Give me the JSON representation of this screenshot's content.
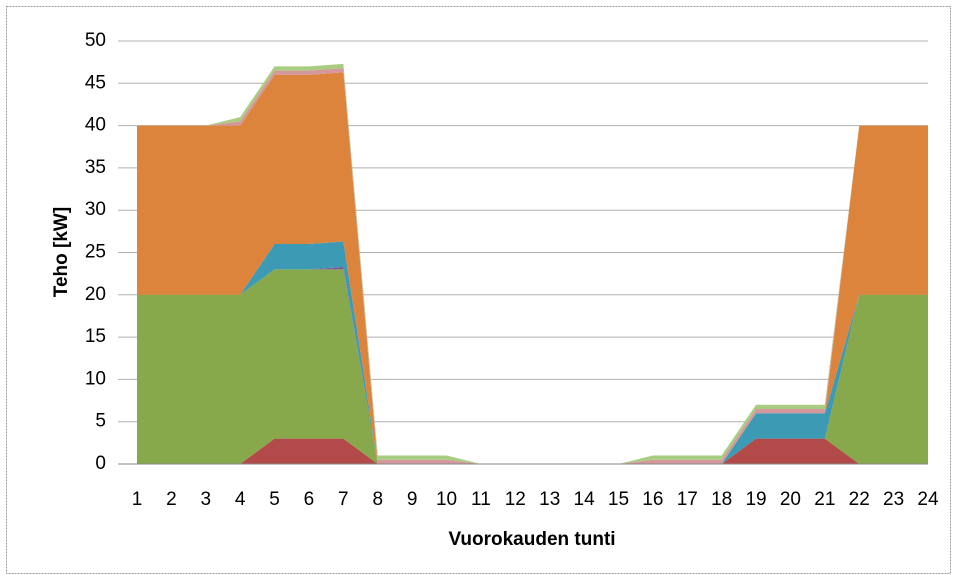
{
  "chart_data": {
    "type": "stacked-area",
    "x_label": "Vuorokauden tunti",
    "y_label": "Teho [kW]",
    "x": [
      1,
      2,
      3,
      4,
      5,
      6,
      7,
      8,
      9,
      10,
      11,
      12,
      13,
      14,
      15,
      16,
      17,
      18,
      19,
      20,
      21,
      22,
      23,
      24
    ],
    "xlim": [
      1,
      24
    ],
    "xticks": [
      1,
      2,
      3,
      4,
      5,
      6,
      7,
      8,
      9,
      10,
      11,
      12,
      13,
      14,
      15,
      16,
      17,
      18,
      19,
      20,
      21,
      22,
      23,
      24
    ],
    "ylim": [
      0,
      50
    ],
    "yticks": [
      0,
      5,
      10,
      15,
      20,
      25,
      30,
      35,
      40,
      45,
      50
    ],
    "grid": true,
    "series": [
      {
        "color": "#b14a48",
        "values": [
          0,
          0,
          0,
          0,
          3,
          3,
          3,
          0,
          0,
          0,
          0,
          0,
          0,
          0,
          0,
          0,
          0,
          0,
          3,
          3,
          3,
          0,
          0,
          0
        ]
      },
      {
        "color": "#88a84c",
        "values": [
          20,
          20,
          20,
          20,
          20,
          20,
          20,
          0,
          0,
          0,
          0,
          0,
          0,
          0,
          0,
          0,
          0,
          0,
          0,
          0,
          0,
          20,
          20,
          20
        ]
      },
      {
        "color": "#7a5a9a",
        "values": [
          0,
          0,
          0,
          0,
          0,
          0,
          0.3,
          0,
          0,
          0,
          0,
          0,
          0,
          0,
          0,
          0,
          0,
          0,
          0,
          0,
          0,
          0,
          0,
          0
        ]
      },
      {
        "color": "#3d9ab4",
        "values": [
          0,
          0,
          0,
          0,
          3,
          3,
          3,
          0,
          0,
          0,
          0,
          0,
          0,
          0,
          0,
          0,
          0,
          0,
          3,
          3,
          3,
          0,
          0,
          0
        ]
      },
      {
        "color": "#dd843c",
        "values": [
          20,
          20,
          20,
          20,
          20,
          20,
          20,
          0,
          0,
          0,
          0,
          0,
          0,
          0,
          0,
          0,
          0,
          0,
          0,
          0,
          0,
          20,
          20,
          20
        ]
      },
      {
        "color": "#d4989a",
        "values": [
          0,
          0,
          0,
          0.5,
          0.5,
          0.5,
          0.5,
          0.5,
          0.5,
          0.5,
          0,
          0,
          0,
          0,
          0,
          0.5,
          0.5,
          0.5,
          0.5,
          0.5,
          0.5,
          0,
          0,
          0
        ]
      },
      {
        "color": "#a8cc80",
        "values": [
          0,
          0,
          0,
          0.5,
          0.5,
          0.5,
          0.5,
          0.5,
          0.5,
          0.5,
          0,
          0,
          0,
          0,
          0,
          0.5,
          0.5,
          0.5,
          0.5,
          0.5,
          0.5,
          0,
          0,
          0
        ]
      }
    ]
  }
}
